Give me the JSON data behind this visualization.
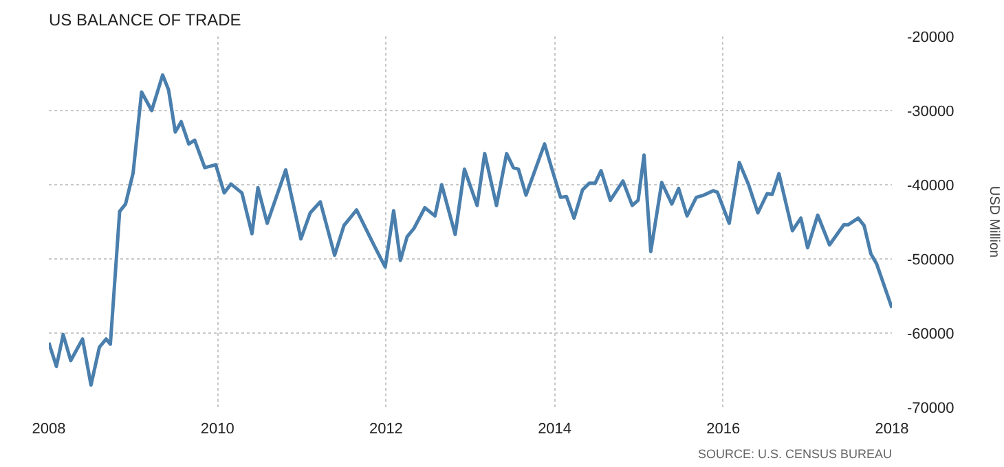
{
  "chart_data": {
    "type": "line",
    "title": "US BALANCE OF TRADE",
    "ylabel": "USD Million",
    "annotations": [
      "SOURCE: U.S. CENSUS BUREAU"
    ],
    "x": [
      2008.0,
      2008.09,
      2008.17,
      2008.26,
      2008.4,
      2008.5,
      2008.6,
      2008.68,
      2008.73,
      2008.84,
      2008.91,
      2009.0,
      2009.1,
      2009.22,
      2009.35,
      2009.42,
      2009.5,
      2009.57,
      2009.66,
      2009.73,
      2009.85,
      2009.98,
      2010.08,
      2010.16,
      2010.29,
      2010.41,
      2010.48,
      2010.59,
      2010.81,
      2010.99,
      2011.1,
      2011.22,
      2011.39,
      2011.5,
      2011.65,
      2011.85,
      2011.99,
      2012.09,
      2012.17,
      2012.25,
      2012.33,
      2012.46,
      2012.58,
      2012.66,
      2012.82,
      2012.93,
      2013.08,
      2013.17,
      2013.31,
      2013.43,
      2013.51,
      2013.57,
      2013.66,
      2013.88,
      2013.96,
      2014.07,
      2014.14,
      2014.23,
      2014.33,
      2014.41,
      2014.48,
      2014.55,
      2014.66,
      2014.81,
      2014.92,
      2014.99,
      2015.06,
      2015.14,
      2015.27,
      2015.39,
      2015.47,
      2015.57,
      2015.68,
      2015.77,
      2015.88,
      2015.93,
      2016.07,
      2016.19,
      2016.3,
      2016.41,
      2016.52,
      2016.58,
      2016.66,
      2016.82,
      2016.92,
      2017.0,
      2017.12,
      2017.26,
      2017.43,
      2017.48,
      2017.6,
      2017.67,
      2017.75,
      2017.82,
      2018.0
    ],
    "series": [
      {
        "color": "#4a7fad",
        "values": [
          -61300,
          -64500,
          -60200,
          -63700,
          -60800,
          -67000,
          -61900,
          -60800,
          -61500,
          -43600,
          -42600,
          -38400,
          -27500,
          -30000,
          -25200,
          -27200,
          -32900,
          -31500,
          -34500,
          -34000,
          -37700,
          -37300,
          -41100,
          -39900,
          -41100,
          -46600,
          -40400,
          -45200,
          -38000,
          -47300,
          -43800,
          -42300,
          -49500,
          -45500,
          -43400,
          -48000,
          -51100,
          -43500,
          -50200,
          -47000,
          -45900,
          -43100,
          -44200,
          -40000,
          -46700,
          -37900,
          -42800,
          -35800,
          -42800,
          -35800,
          -37700,
          -37900,
          -41400,
          -34500,
          -37600,
          -41700,
          -41600,
          -44500,
          -40700,
          -39800,
          -39800,
          -38100,
          -42100,
          -39500,
          -42800,
          -42100,
          -36000,
          -49000,
          -39700,
          -42600,
          -40500,
          -44200,
          -41700,
          -41400,
          -40800,
          -41000,
          -45200,
          -37000,
          -40000,
          -43800,
          -41200,
          -41300,
          -38500,
          -46200,
          -44500,
          -48500,
          -44100,
          -48100,
          -45400,
          -45400,
          -44500,
          -45500,
          -49300,
          -50700,
          -56600
        ]
      }
    ],
    "xlim": [
      2008,
      2018
    ],
    "ylim": [
      -70000,
      -20000
    ],
    "xticks": [
      2008,
      2010,
      2012,
      2014,
      2016,
      2018
    ],
    "yticks": [
      -70000,
      -60000,
      -50000,
      -40000,
      -30000,
      -20000
    ],
    "grid": true,
    "marker": "none",
    "line_style": "solid"
  }
}
